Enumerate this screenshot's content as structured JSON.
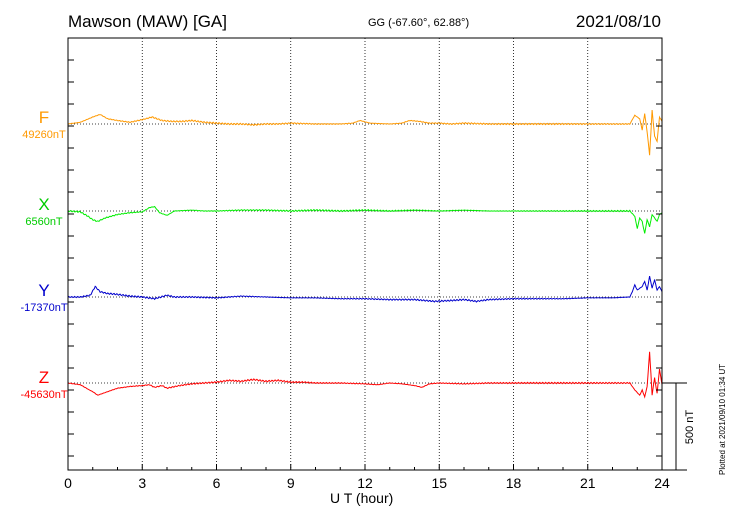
{
  "header": {
    "title": "Mawson (MAW)  [GA]",
    "coords": "GG (-67.60°,  62.88°)",
    "date": "2021/08/10"
  },
  "footer": {
    "plotted": "Plotted at 2021/09/10 01:34 UT"
  },
  "scale_label": "500 nT",
  "chart_data": {
    "type": "line",
    "title": "Mawson (MAW)  [GA]",
    "xlabel": "U T (hour)",
    "ylabel": "",
    "xlim": [
      0,
      24
    ],
    "xticks": [
      "0",
      "3",
      "6",
      "9",
      "12",
      "15",
      "18",
      "21",
      "24"
    ],
    "grid": "dotted vertical every 3 hours",
    "scale_bar_nT": 500,
    "components": [
      {
        "name": "F",
        "baseline": "49260nT",
        "color": "#ff9900",
        "points": [
          [
            0,
            0
          ],
          [
            0.5,
            10
          ],
          [
            1.0,
            40
          ],
          [
            1.3,
            55
          ],
          [
            1.6,
            30
          ],
          [
            2.0,
            20
          ],
          [
            2.5,
            10
          ],
          [
            3.0,
            25
          ],
          [
            3.4,
            40
          ],
          [
            3.8,
            20
          ],
          [
            4.2,
            15
          ],
          [
            4.6,
            15
          ],
          [
            5.0,
            20
          ],
          [
            5.5,
            10
          ],
          [
            6.0,
            5
          ],
          [
            6.5,
            0
          ],
          [
            7.0,
            0
          ],
          [
            7.5,
            -5
          ],
          [
            8.0,
            0
          ],
          [
            8.5,
            0
          ],
          [
            9.0,
            5
          ],
          [
            10.0,
            0
          ],
          [
            11.0,
            0
          ],
          [
            11.5,
            5
          ],
          [
            11.8,
            20
          ],
          [
            12.2,
            5
          ],
          [
            13.0,
            0
          ],
          [
            13.5,
            5
          ],
          [
            13.8,
            20
          ],
          [
            14.2,
            15
          ],
          [
            14.6,
            5
          ],
          [
            15.0,
            5
          ],
          [
            15.5,
            0
          ],
          [
            16.0,
            5
          ],
          [
            17.0,
            0
          ],
          [
            18.0,
            0
          ],
          [
            19.0,
            0
          ],
          [
            20.0,
            0
          ],
          [
            21.0,
            0
          ],
          [
            22.0,
            0
          ],
          [
            22.7,
            0
          ],
          [
            22.9,
            50
          ],
          [
            23.1,
            30
          ],
          [
            23.2,
            -35
          ],
          [
            23.3,
            60
          ],
          [
            23.4,
            -45
          ],
          [
            23.5,
            -180
          ],
          [
            23.6,
            80
          ],
          [
            23.7,
            -70
          ],
          [
            23.8,
            -100
          ],
          [
            23.9,
            40
          ],
          [
            24,
            15
          ]
        ]
      },
      {
        "name": "X",
        "baseline": "6560nT",
        "color": "#00ee00",
        "points": [
          [
            0,
            0
          ],
          [
            0.5,
            -5
          ],
          [
            0.8,
            -30
          ],
          [
            1.0,
            -50
          ],
          [
            1.2,
            -60
          ],
          [
            1.5,
            -40
          ],
          [
            2.0,
            -20
          ],
          [
            2.5,
            -10
          ],
          [
            3.0,
            -5
          ],
          [
            3.3,
            20
          ],
          [
            3.5,
            25
          ],
          [
            3.7,
            -10
          ],
          [
            4.0,
            -25
          ],
          [
            4.3,
            0
          ],
          [
            5.0,
            5
          ],
          [
            5.5,
            0
          ],
          [
            6.0,
            0
          ],
          [
            7.0,
            5
          ],
          [
            8.0,
            5
          ],
          [
            9.0,
            0
          ],
          [
            10.0,
            5
          ],
          [
            11.0,
            0
          ],
          [
            12.0,
            5
          ],
          [
            13.0,
            0
          ],
          [
            14.0,
            5
          ],
          [
            15.0,
            0
          ],
          [
            16.0,
            5
          ],
          [
            17.0,
            0
          ],
          [
            18.0,
            0
          ],
          [
            19.0,
            0
          ],
          [
            20.0,
            0
          ],
          [
            21.0,
            0
          ],
          [
            22.0,
            0
          ],
          [
            22.7,
            0
          ],
          [
            22.9,
            -30
          ],
          [
            23.0,
            -100
          ],
          [
            23.1,
            -40
          ],
          [
            23.2,
            -60
          ],
          [
            23.3,
            -130
          ],
          [
            23.4,
            -50
          ],
          [
            23.5,
            -90
          ],
          [
            23.6,
            -20
          ],
          [
            23.7,
            -40
          ],
          [
            23.8,
            -60
          ],
          [
            23.9,
            -20
          ],
          [
            24,
            -10
          ]
        ]
      },
      {
        "name": "Y",
        "baseline": "-17370nT",
        "color": "#0000cc",
        "points": [
          [
            0,
            0
          ],
          [
            0.5,
            0
          ],
          [
            0.9,
            10
          ],
          [
            1.1,
            60
          ],
          [
            1.3,
            30
          ],
          [
            1.6,
            20
          ],
          [
            2.0,
            15
          ],
          [
            2.5,
            5
          ],
          [
            3.0,
            0
          ],
          [
            3.5,
            -10
          ],
          [
            4.0,
            10
          ],
          [
            4.3,
            0
          ],
          [
            5.0,
            0
          ],
          [
            6.0,
            -5
          ],
          [
            7.0,
            5
          ],
          [
            8.0,
            0
          ],
          [
            9.0,
            -5
          ],
          [
            10.0,
            -5
          ],
          [
            11.0,
            -10
          ],
          [
            12.0,
            -10
          ],
          [
            13.0,
            -15
          ],
          [
            14.0,
            -15
          ],
          [
            14.8,
            -25
          ],
          [
            15.5,
            -20
          ],
          [
            16.0,
            -15
          ],
          [
            16.5,
            -25
          ],
          [
            17.0,
            -15
          ],
          [
            18.0,
            -10
          ],
          [
            19.0,
            -10
          ],
          [
            20.0,
            -10
          ],
          [
            21.0,
            -5
          ],
          [
            22.0,
            -5
          ],
          [
            22.7,
            0
          ],
          [
            22.8,
            30
          ],
          [
            22.9,
            70
          ],
          [
            23.0,
            40
          ],
          [
            23.2,
            60
          ],
          [
            23.3,
            90
          ],
          [
            23.4,
            40
          ],
          [
            23.5,
            120
          ],
          [
            23.6,
            50
          ],
          [
            23.7,
            100
          ],
          [
            23.8,
            40
          ],
          [
            23.9,
            60
          ],
          [
            24,
            30
          ]
        ]
      },
      {
        "name": "Z",
        "baseline": "-45630nT",
        "color": "#ff0000",
        "points": [
          [
            0,
            0
          ],
          [
            0.5,
            -10
          ],
          [
            0.8,
            -35
          ],
          [
            1.0,
            -50
          ],
          [
            1.2,
            -70
          ],
          [
            1.5,
            -55
          ],
          [
            2.0,
            -30
          ],
          [
            2.5,
            -20
          ],
          [
            3.0,
            -15
          ],
          [
            3.3,
            -10
          ],
          [
            3.5,
            -25
          ],
          [
            3.8,
            -15
          ],
          [
            4.0,
            -30
          ],
          [
            4.5,
            -15
          ],
          [
            5.0,
            -5
          ],
          [
            5.5,
            0
          ],
          [
            6.0,
            5
          ],
          [
            6.5,
            15
          ],
          [
            7.0,
            10
          ],
          [
            7.5,
            20
          ],
          [
            8.0,
            10
          ],
          [
            8.5,
            15
          ],
          [
            9.0,
            5
          ],
          [
            9.5,
            5
          ],
          [
            10.0,
            0
          ],
          [
            11.0,
            0
          ],
          [
            12.0,
            -5
          ],
          [
            12.5,
            -10
          ],
          [
            13.0,
            0
          ],
          [
            13.5,
            -5
          ],
          [
            14.0,
            -15
          ],
          [
            14.3,
            -25
          ],
          [
            14.6,
            -5
          ],
          [
            15.0,
            0
          ],
          [
            16.0,
            -5
          ],
          [
            17.0,
            0
          ],
          [
            18.0,
            0
          ],
          [
            19.0,
            0
          ],
          [
            20.0,
            0
          ],
          [
            21.0,
            0
          ],
          [
            22.0,
            0
          ],
          [
            22.7,
            0
          ],
          [
            22.9,
            -40
          ],
          [
            23.1,
            -70
          ],
          [
            23.2,
            -40
          ],
          [
            23.3,
            -80
          ],
          [
            23.4,
            -20
          ],
          [
            23.5,
            180
          ],
          [
            23.6,
            -70
          ],
          [
            23.7,
            30
          ],
          [
            23.8,
            -60
          ],
          [
            23.9,
            80
          ],
          [
            24,
            -10
          ]
        ]
      }
    ]
  }
}
